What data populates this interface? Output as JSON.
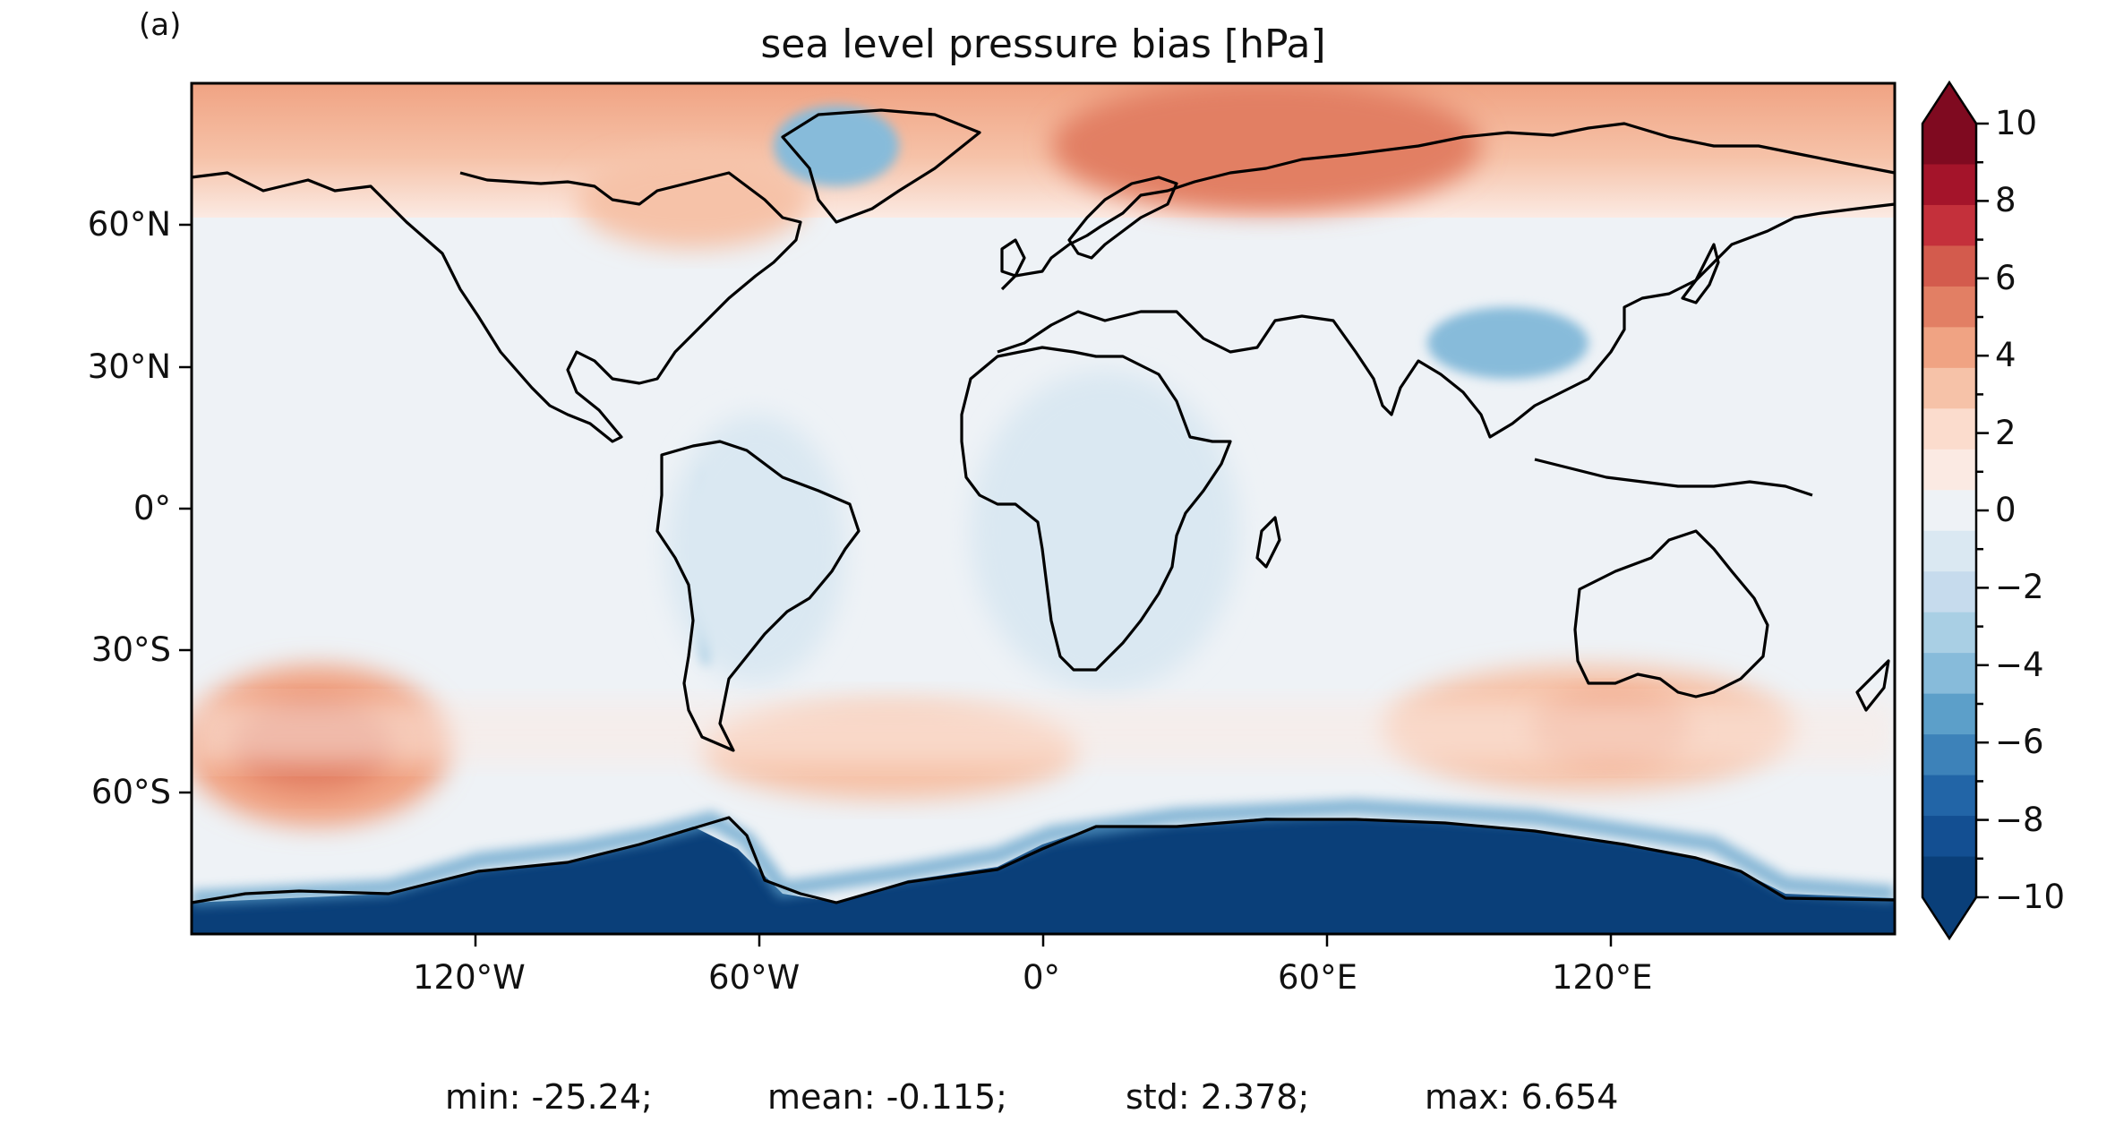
{
  "panel_label": "(a)",
  "title": "sea level pressure bias [hPa]",
  "map": {
    "projection": "PlateCarree",
    "lon_ticks": [
      "120°W",
      "60°W",
      "0°",
      "60°E",
      "120°E"
    ],
    "lat_ticks": [
      "60°N",
      "30°N",
      "0°",
      "30°S",
      "60°S"
    ],
    "coastlines": true
  },
  "colorbar": {
    "cmap": "RdBu_r",
    "extend": "both",
    "tick_labels": [
      "10",
      "8",
      "6",
      "4",
      "2",
      "0",
      "−2",
      "−4",
      "−6",
      "−8",
      "−10"
    ],
    "colors_high_to_low": [
      "#7f0a20",
      "#a4142a",
      "#c4303b",
      "#d35b4d",
      "#e27f64",
      "#f0a383",
      "#f6c2a8",
      "#fbdccd",
      "#fbeae3",
      "#eef2f6",
      "#dae8f2",
      "#c6dbed",
      "#a9cfe4",
      "#87bbda",
      "#5c9fc9",
      "#3d82b9",
      "#2265a7",
      "#134f92",
      "#0a3f79"
    ]
  },
  "stats": {
    "min": "min: -25.24;",
    "mean": "mean: -0.115;",
    "std": "std: 2.378;",
    "max": "max: 6.654"
  }
}
